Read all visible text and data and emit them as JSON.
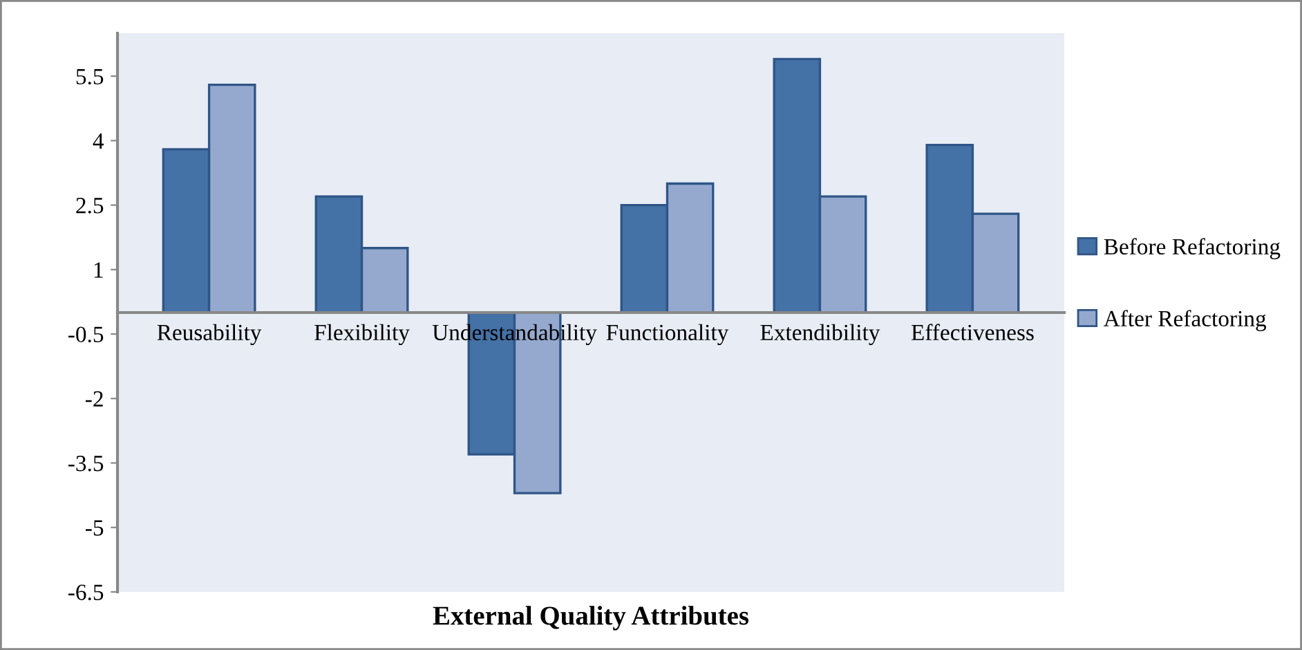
{
  "chart_data": {
    "type": "bar",
    "xlabel": "External Quality Attributes",
    "categories": [
      "Reusability",
      "Flexibility",
      "Understandability",
      "Functionality",
      "Extendibility",
      "Effectiveness"
    ],
    "series": [
      {
        "name": "Before Refactoring",
        "color": "#4471a6",
        "values": [
          3.8,
          2.7,
          -3.3,
          2.5,
          5.9,
          3.9
        ]
      },
      {
        "name": "After Refactoring",
        "color": "#95a9cf",
        "values": [
          5.3,
          1.5,
          -4.2,
          3.0,
          2.7,
          2.3
        ]
      }
    ],
    "ylim": [
      -6.5,
      6.5
    ],
    "yticks": [
      5.5,
      4,
      2.5,
      1,
      -0.5,
      -2,
      -3.5,
      -5,
      -6.5
    ],
    "grid": false,
    "legend": "right"
  }
}
